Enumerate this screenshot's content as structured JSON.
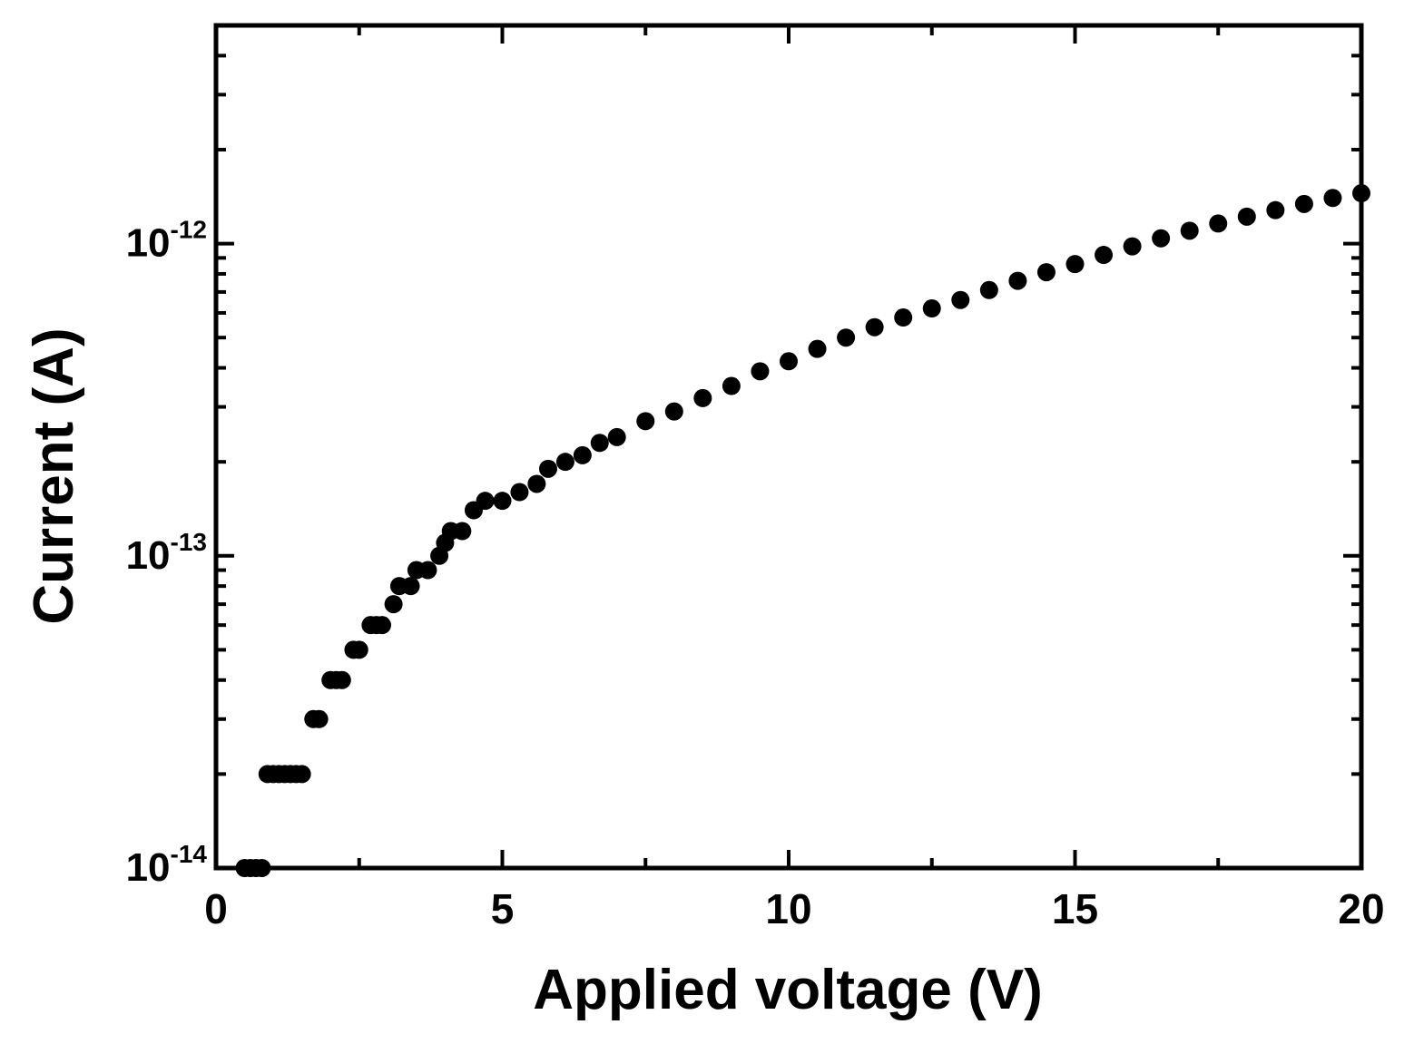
{
  "chart_data": {
    "type": "scatter",
    "title": "",
    "xlabel": "Applied voltage (V)",
    "ylabel": "Current (A)",
    "xlim": [
      0,
      20
    ],
    "ylim": [
      1e-14,
      5e-12
    ],
    "yscale": "log",
    "grid": false,
    "legend": "none",
    "marker_color": "#000000",
    "x_ticks": [
      {
        "value": 0,
        "label": "0"
      },
      {
        "value": 5,
        "label": "5"
      },
      {
        "value": 10,
        "label": "10"
      },
      {
        "value": 15,
        "label": "15"
      },
      {
        "value": 20,
        "label": "20"
      }
    ],
    "y_ticks": [
      {
        "value": 1e-14,
        "base": "10",
        "exp": "-14"
      },
      {
        "value": 1e-13,
        "base": "10",
        "exp": "-13"
      },
      {
        "value": 1e-12,
        "base": "10",
        "exp": "-12"
      }
    ],
    "series": [
      {
        "x": [
          0.5,
          0.6,
          0.7,
          0.8,
          0.9,
          1.0,
          1.1,
          1.2,
          1.3,
          1.4,
          1.5,
          1.7,
          1.8,
          2.0,
          2.1,
          2.2,
          2.4,
          2.5,
          2.7,
          2.8,
          2.9,
          3.1,
          3.2,
          3.4,
          3.5,
          3.7,
          3.9,
          4.0,
          4.1,
          4.3,
          4.5,
          4.7,
          5.0,
          5.3,
          5.6,
          5.8,
          6.1,
          6.4,
          6.7,
          7.0,
          7.5,
          8.0,
          8.5,
          9.0,
          9.5,
          10.0,
          10.5,
          11.0,
          11.5,
          12.0,
          12.5,
          13.0,
          13.5,
          14.0,
          14.5,
          15.0,
          15.5,
          16.0,
          16.5,
          17.0,
          17.5,
          18.0,
          18.5,
          19.0,
          19.5,
          20.0
        ],
        "y": [
          1e-14,
          1e-14,
          1e-14,
          1e-14,
          2e-14,
          2e-14,
          2e-14,
          2e-14,
          2e-14,
          2e-14,
          2e-14,
          3e-14,
          3e-14,
          4e-14,
          4e-14,
          4e-14,
          5e-14,
          5e-14,
          6e-14,
          6e-14,
          6e-14,
          7e-14,
          8e-14,
          8e-14,
          9e-14,
          9e-14,
          1e-13,
          1.1e-13,
          1.2e-13,
          1.2e-13,
          1.4e-13,
          1.5e-13,
          1.5e-13,
          1.6e-13,
          1.7e-13,
          1.9e-13,
          2e-13,
          2.1e-13,
          2.3e-13,
          2.4e-13,
          2.7e-13,
          2.9e-13,
          3.2e-13,
          3.5e-13,
          3.9e-13,
          4.2e-13,
          4.6e-13,
          5e-13,
          5.4e-13,
          5.8e-13,
          6.2e-13,
          6.6e-13,
          7.1e-13,
          7.6e-13,
          8.1e-13,
          8.6e-13,
          9.2e-13,
          9.8e-13,
          1.04e-12,
          1.1e-12,
          1.16e-12,
          1.22e-12,
          1.28e-12,
          1.34e-12,
          1.4e-12,
          1.45e-12
        ]
      }
    ]
  }
}
